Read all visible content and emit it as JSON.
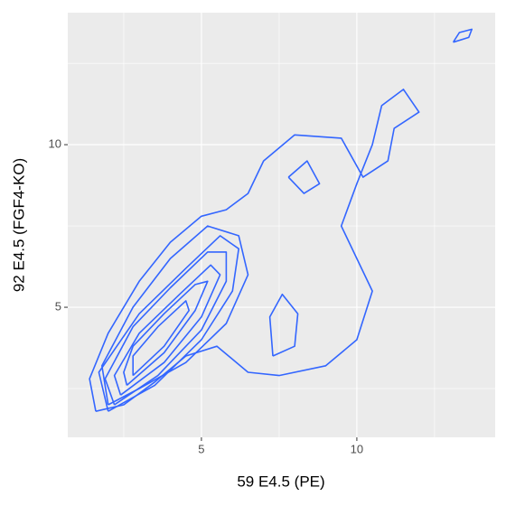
{
  "chart_data": {
    "type": "contour",
    "x_label": "59 E4.5 (PE)",
    "y_label": "92 E4.5 (FGF4-KO)",
    "xlim": [
      0.7,
      14.45
    ],
    "ylim": [
      1.0,
      14.06
    ],
    "xticks": [
      5,
      10
    ],
    "yticks": [
      5,
      10
    ],
    "x_minor_grid": [
      2.5,
      7.5,
      12.5
    ],
    "y_minor_grid": [
      2.5,
      7.5,
      12.5
    ],
    "grid": true,
    "color": "#3366ff",
    "contours": [
      {
        "x": [
          1.6,
          2.5,
          3.5,
          4.5,
          5.5,
          6.5,
          7.5,
          9.0,
          10.0,
          10.5,
          10.0,
          9.5,
          10.0,
          10.5,
          10.8,
          11.5,
          12.0,
          11.2,
          11.0,
          10.2,
          9.5,
          8.0,
          7.0,
          6.5,
          5.8,
          5.0,
          4.0,
          3.0,
          2.0,
          1.4,
          1.6
        ],
        "y": [
          1.8,
          2.0,
          2.7,
          3.5,
          3.8,
          3.0,
          2.9,
          3.2,
          4.0,
          5.5,
          6.5,
          7.5,
          8.8,
          10.0,
          11.2,
          11.7,
          11.0,
          10.5,
          9.5,
          9.0,
          10.2,
          10.3,
          9.5,
          8.5,
          8.0,
          7.8,
          7.0,
          5.8,
          4.2,
          2.8,
          1.8
        ]
      },
      {
        "x": [
          2.0,
          3.0,
          4.5,
          5.8,
          6.5,
          6.2,
          5.2,
          4.0,
          2.8,
          1.8,
          2.0
        ],
        "y": [
          2.0,
          2.5,
          3.3,
          4.5,
          6.0,
          7.2,
          7.5,
          6.5,
          5.0,
          3.2,
          2.0
        ]
      },
      {
        "x": [
          2.0,
          3.5,
          5.0,
          6.0,
          6.2,
          5.6,
          4.5,
          3.0,
          1.7,
          2.0
        ],
        "y": [
          1.8,
          2.6,
          4.0,
          5.5,
          6.8,
          7.2,
          6.2,
          4.8,
          3.0,
          1.8
        ]
      },
      {
        "x": [
          2.2,
          3.6,
          5.0,
          5.8,
          5.8,
          5.2,
          4.0,
          2.8,
          1.9,
          2.2
        ],
        "y": [
          2.0,
          2.9,
          4.3,
          5.8,
          6.7,
          6.7,
          5.6,
          4.4,
          2.8,
          2.0
        ]
      },
      {
        "x": [
          2.4,
          3.8,
          5.0,
          5.6,
          5.3,
          4.3,
          3.0,
          2.2,
          2.4
        ],
        "y": [
          2.3,
          3.3,
          4.7,
          6.0,
          6.3,
          5.4,
          4.2,
          2.9,
          2.3
        ]
      },
      {
        "x": [
          2.6,
          3.8,
          4.8,
          5.2,
          4.8,
          3.8,
          2.8,
          2.5,
          2.6
        ],
        "y": [
          2.6,
          3.6,
          4.9,
          5.8,
          5.7,
          4.8,
          3.8,
          3.0,
          2.6
        ]
      },
      {
        "x": [
          2.8,
          3.8,
          4.6,
          4.5,
          3.6,
          2.8,
          2.8
        ],
        "y": [
          2.9,
          3.8,
          4.9,
          5.2,
          4.4,
          3.5,
          2.9
        ]
      },
      {
        "x": [
          13.1,
          13.6,
          13.7,
          13.3,
          13.1
        ],
        "y": [
          13.15,
          13.3,
          13.55,
          13.45,
          13.15
        ]
      },
      {
        "x": [
          7.3,
          8.0,
          8.1,
          7.6,
          7.2,
          7.3
        ],
        "y": [
          3.5,
          3.8,
          4.8,
          5.4,
          4.7,
          3.5
        ]
      },
      {
        "x": [
          7.8,
          8.4,
          8.8,
          8.3,
          7.8
        ],
        "y": [
          9.0,
          9.5,
          8.8,
          8.5,
          9.0
        ]
      }
    ]
  }
}
